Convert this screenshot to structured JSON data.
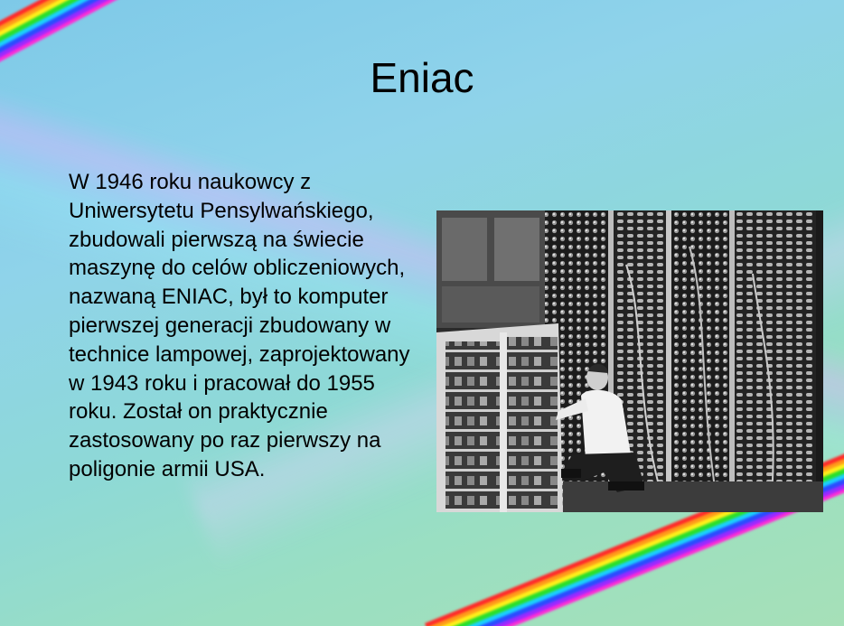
{
  "slide": {
    "title": "Eniac",
    "body": "W 1946 roku naukowcy z Uniwersytetu Pensylwańskiego, zbudowali pierwszą na świecie maszynę do celów obliczeniowych, nazwaną ENIAC, był to komputer pierwszej generacji zbudowany w technice lampowej, zaprojektowany w 1943 roku i pracował do 1955 roku. Został on praktycznie zastosowany po raz pierwszy na poligonie armii USA.",
    "photo": {
      "subject": "eniac-computer-photo"
    }
  }
}
